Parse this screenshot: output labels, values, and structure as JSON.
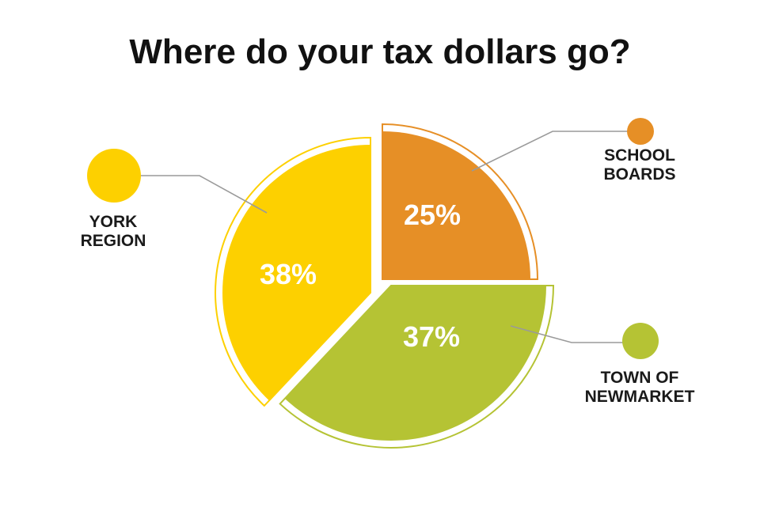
{
  "title": "Where do your tax dollars go?",
  "chart_data": {
    "type": "pie",
    "title": "Where do your tax dollars go?",
    "start_angle_deg": 0,
    "direction": "clockwise",
    "slices": [
      {
        "label_lines": [
          "SCHOOL",
          "BOARDS"
        ],
        "value": 25,
        "value_label": "25%",
        "color": "#E68F26"
      },
      {
        "label_lines": [
          "TOWN OF",
          "NEWMARKET"
        ],
        "value": 37,
        "value_label": "37%",
        "color": "#B5C334"
      },
      {
        "label_lines": [
          "YORK",
          "REGION"
        ],
        "value": 38,
        "value_label": "38%",
        "color": "#FDD000"
      }
    ],
    "legend": "callouts with colored dots beside each slice"
  }
}
